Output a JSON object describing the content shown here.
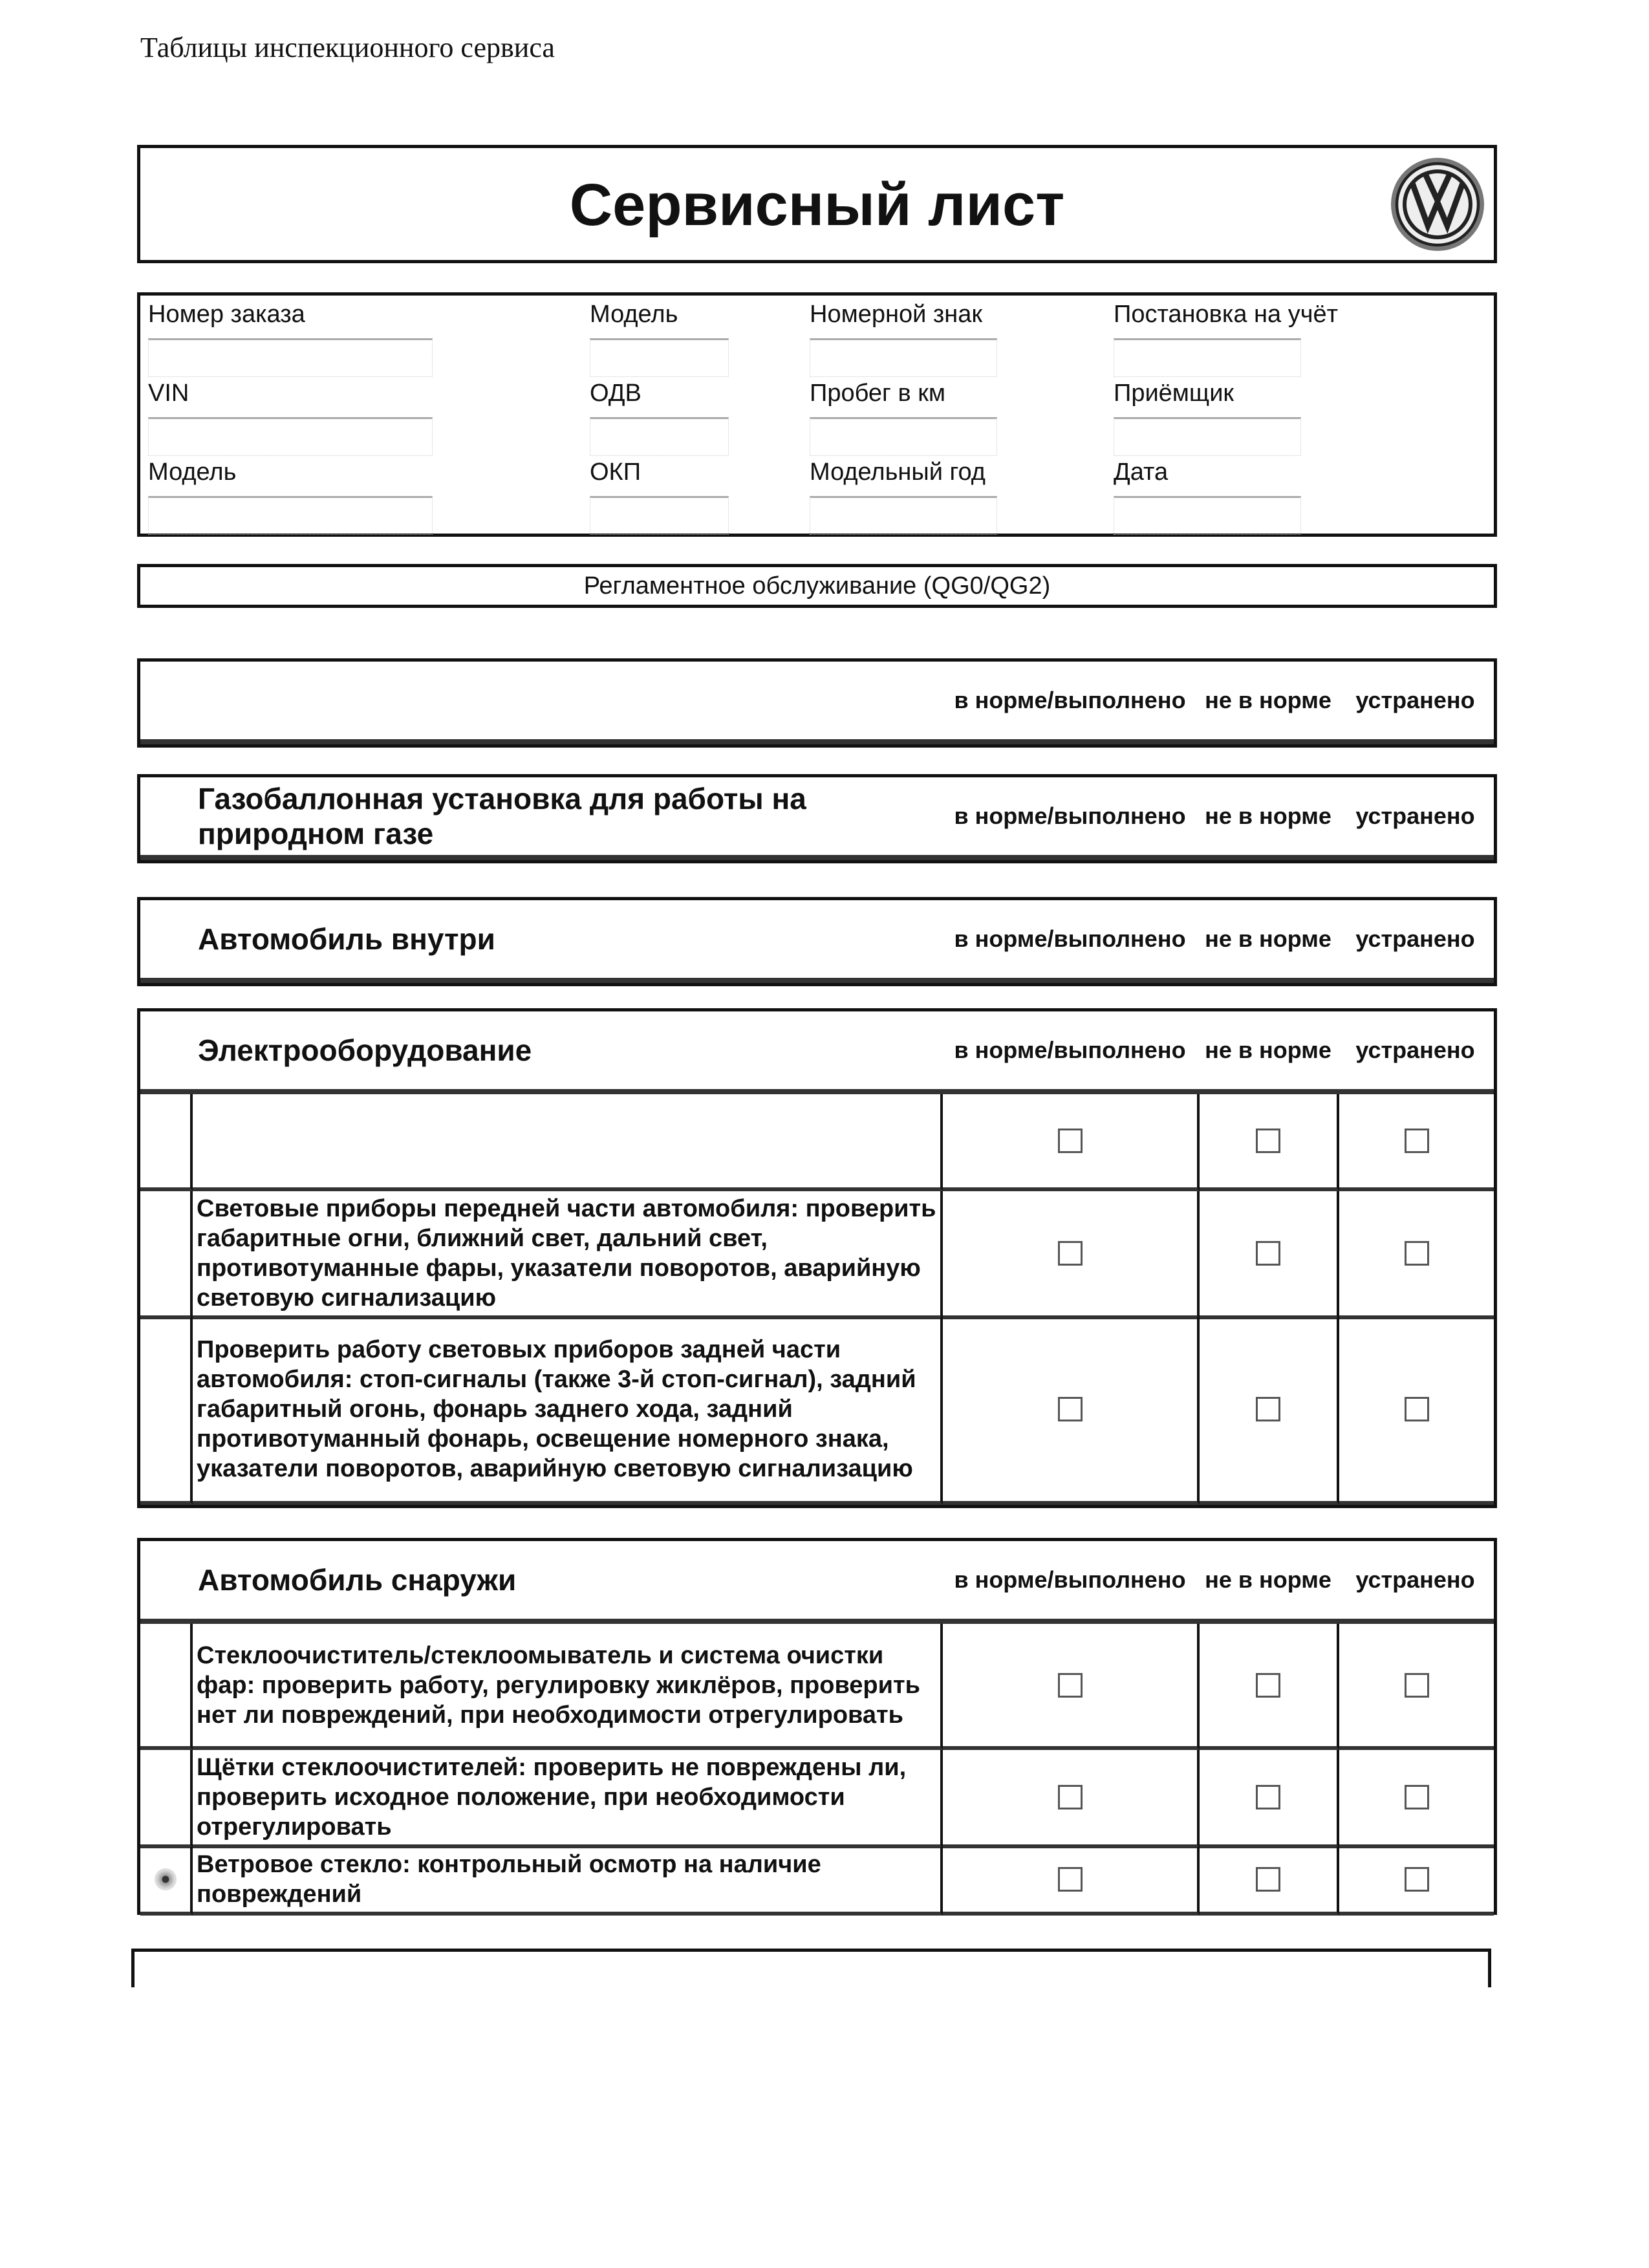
{
  "header_note": "Таблицы инспекционного сервиса",
  "title": "Сервисный лист",
  "logo": "VW",
  "info_fields": [
    {
      "label": "Номер заказа",
      "value": ""
    },
    {
      "label": "Модель",
      "value": ""
    },
    {
      "label": "Номерной знак",
      "value": ""
    },
    {
      "label": "Постановка на учёт",
      "value": ""
    },
    {
      "label": "VIN",
      "value": ""
    },
    {
      "label": "ОДВ",
      "value": ""
    },
    {
      "label": "Пробег в км",
      "value": ""
    },
    {
      "label": "Приёмщик",
      "value": ""
    },
    {
      "label": "Модель",
      "value": ""
    },
    {
      "label": "ОКП",
      "value": ""
    },
    {
      "label": "Модельный год",
      "value": ""
    },
    {
      "label": "Дата",
      "value": ""
    }
  ],
  "service_type": "Регламентное обслуживание (QG0/QG2)",
  "columns": [
    "в норме/выполнено",
    "не в норме",
    "устранено"
  ],
  "sections": [
    {
      "name": "",
      "rows": []
    },
    {
      "name": "Газобаллонная установка для работы на природном газе",
      "rows": []
    },
    {
      "name": "Автомобиль внутри",
      "rows": []
    },
    {
      "name": "Электрооборудование",
      "rows": [
        {
          "text": "",
          "icon": "",
          "checks": [
            false,
            false,
            false
          ]
        },
        {
          "text": "Световые приборы передней части автомобиля: проверить габаритные огни, ближний свет, дальний свет, противотуманные фары, указатели поворотов, аварийную световую сигнализацию",
          "icon": "",
          "checks": [
            false,
            false,
            false
          ]
        },
        {
          "text": "Проверить работу световых приборов задней части автомобиля: стоп-сигналы (также 3-й стоп-сигнал), задний габаритный огонь, фонарь заднего хода, задний противотуманный фонарь, освещение номерного знака, указатели поворотов, аварийную световую сигнализацию",
          "icon": "",
          "checks": [
            false,
            false,
            false
          ]
        }
      ]
    },
    {
      "name": "Автомобиль снаружи",
      "rows": [
        {
          "text": "Стеклоочиститель/стеклоомыватель и система очистки фар: проверить работу, регулировку жиклёров, проверить нет ли повреждений, при необходимости отрегулировать",
          "icon": "",
          "checks": [
            false,
            false,
            false
          ]
        },
        {
          "text": "Щётки стеклоочистителей: проверить не повреждены ли, проверить исходное положение, при необходимости отрегулировать",
          "icon": "",
          "checks": [
            false,
            false,
            false
          ]
        },
        {
          "text": "Ветровое стекло: контрольный осмотр на наличие повреждений",
          "icon": "eye-icon",
          "checks": [
            false,
            false,
            false
          ]
        }
      ]
    }
  ]
}
